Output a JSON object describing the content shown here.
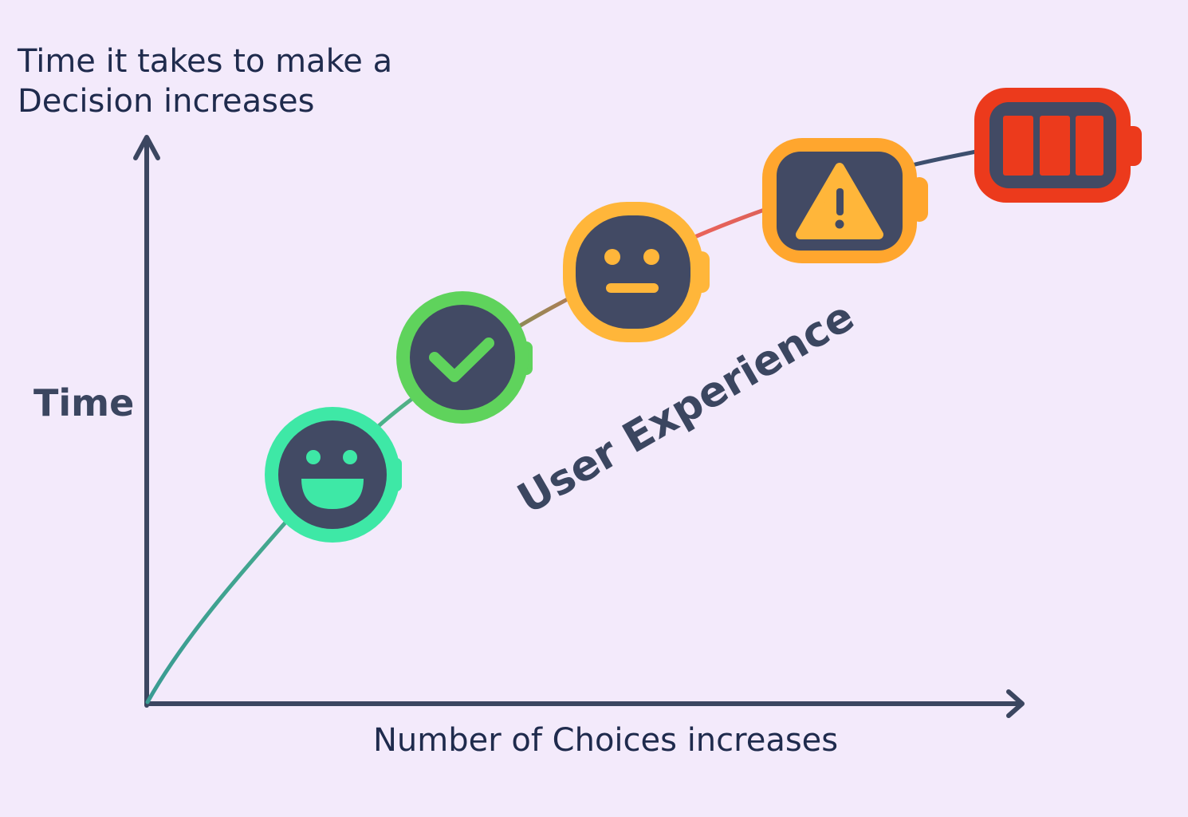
{
  "title": {
    "line1": "Time it takes to make a",
    "line2": "Decision increases"
  },
  "y_axis_label": "Time",
  "x_axis_label": "Number of Choices increases",
  "curve_label": "User Experience",
  "stages": [
    {
      "icon": "smiling-face-icon",
      "color": "#3ee8a6"
    },
    {
      "icon": "checkmark-icon",
      "color": "#5fd35c"
    },
    {
      "icon": "neutral-face-icon",
      "color": "#ffb63a"
    },
    {
      "icon": "warning-icon",
      "color": "#ffa62e"
    },
    {
      "icon": "full-battery-icon",
      "color": "#ec3a1c"
    }
  ],
  "colors": {
    "background": "#f3eafb",
    "axis": "#3b4660",
    "icon_fill": "#424a64"
  }
}
